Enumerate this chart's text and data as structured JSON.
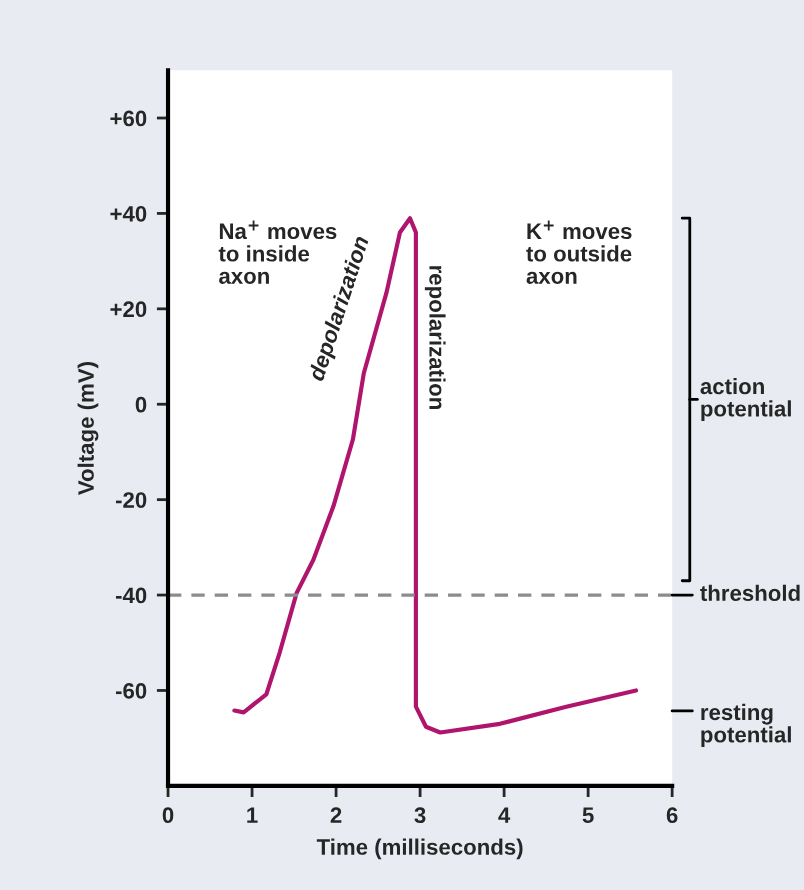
{
  "chart_data": {
    "type": "line",
    "xlabel": "Time (milliseconds)",
    "ylabel": "Voltage (mV)",
    "x": [
      0.79,
      0.9,
      1.17,
      1.33,
      1.53,
      1.73,
      1.97,
      2.2,
      2.33,
      2.6,
      2.76,
      2.88,
      2.95,
      2.95,
      3.07,
      3.24,
      3.95,
      4.74,
      5.57
    ],
    "series": [
      {
        "color": "#b0156e",
        "values": [
          -64.2,
          -64.6,
          -60.8,
          -52,
          -39.6,
          -32.6,
          -21.3,
          -7.4,
          6.5,
          23.4,
          36,
          39,
          36,
          -63.4,
          -67.6,
          -68.8,
          -67,
          -63.4,
          -60
        ]
      }
    ],
    "xlim": [
      0,
      6
    ],
    "ylim": [
      -80,
      70
    ],
    "xticks": [
      0,
      1,
      2,
      3,
      4,
      5,
      6
    ],
    "yticks": [
      {
        "value": 60,
        "label": "+60"
      },
      {
        "value": 40,
        "label": "+40"
      },
      {
        "value": 20,
        "label": "+20"
      },
      0,
      -20,
      -40,
      -60
    ],
    "ref_lines": [
      {
        "axis": "y",
        "value": -40,
        "label": "threshold",
        "color": "#8c8c8c",
        "line_style": "dashed"
      }
    ],
    "annotations": [
      "Na$^{+}$ moves\nto inside\naxon",
      "K$^{+}$ moves\nto outside\naxon",
      "action\npotential",
      "depolarization",
      "repolarization",
      "resting\npotential"
    ],
    "grid": false,
    "legend": false,
    "line_style": "solid",
    "marker": "none"
  }
}
